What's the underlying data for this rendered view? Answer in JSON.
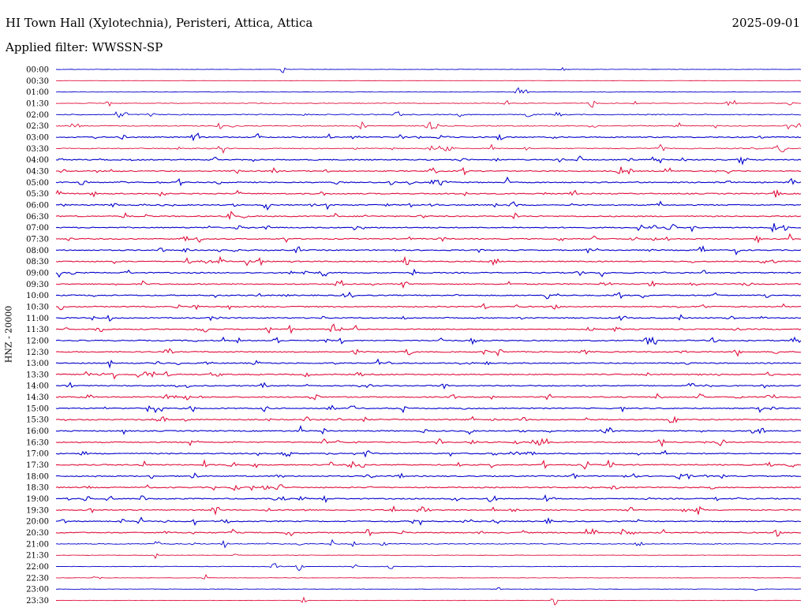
{
  "header": {
    "title": "HI Town Hall (Xylotechnia), Peristeri, Attica, Attica",
    "date": "2025-09-01",
    "filter": "Applied filter: WWSSN-SP"
  },
  "chart_data": {
    "type": "line",
    "title": "HI Town Hall (Xylotechnia), Peristeri, Attica, Attica",
    "subtitle": "Applied filter: WWSSN-SP",
    "ylabel": "HNZ - 20000",
    "xlabel": "",
    "grid": false,
    "categories": [
      "00:00",
      "00:30",
      "01:00",
      "01:30",
      "02:00",
      "02:30",
      "03:00",
      "03:30",
      "04:00",
      "04:30",
      "05:00",
      "05:30",
      "06:00",
      "06:30",
      "07:00",
      "07:30",
      "08:00",
      "08:30",
      "09:00",
      "09:30",
      "10:00",
      "10:30",
      "11:00",
      "11:30",
      "12:00",
      "12:30",
      "13:00",
      "13:30",
      "14:00",
      "14:30",
      "15:00",
      "15:30",
      "16:00",
      "16:30",
      "17:00",
      "17:30",
      "18:00",
      "18:30",
      "19:00",
      "19:30",
      "20:00",
      "20:30",
      "21:00",
      "21:30",
      "22:00",
      "22:30",
      "23:00",
      "23:30"
    ],
    "series_colors": [
      "#0000cc",
      "#e0103c"
    ],
    "activity": [
      1,
      0,
      1,
      3,
      5,
      5,
      6,
      5,
      6,
      6,
      6,
      6,
      6,
      6,
      6,
      6,
      6,
      6,
      6,
      6,
      6,
      6,
      6,
      6,
      6,
      6,
      6,
      6,
      6,
      6,
      6,
      6,
      6,
      6,
      6,
      6,
      6,
      6,
      6,
      6,
      6,
      6,
      4,
      1,
      2,
      1,
      1,
      1
    ]
  }
}
